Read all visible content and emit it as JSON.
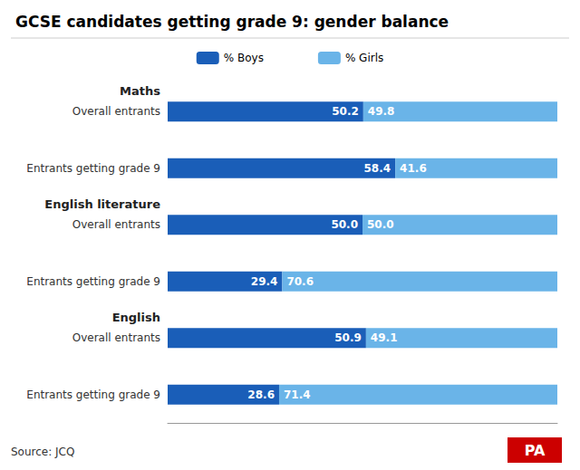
{
  "chart_data": {
    "type": "bar",
    "orientation": "horizontal",
    "stacked": true,
    "title": "GCSE candidates getting grade 9: gender balance",
    "categories": [
      "Overall entrants",
      "Entrants getting grade 9",
      "Overall entrants",
      "Entrants getting grade 9",
      "Overall entrants",
      "Entrants getting grade 9"
    ],
    "category_groups": [
      "Maths",
      "Maths",
      "English literature",
      "English literature",
      "English",
      "English"
    ],
    "series": [
      {
        "name": "% Boys",
        "color": "#1a5eb8",
        "values": [
          50.2,
          58.4,
          50.0,
          29.4,
          50.9,
          28.6
        ],
        "value_labels": [
          "50.2",
          "58.4",
          "50.0",
          "29.4",
          "50.9",
          "28.6"
        ]
      },
      {
        "name": "% Girls",
        "color": "#6ab4e8",
        "values": [
          49.8,
          41.6,
          50.0,
          70.6,
          49.1,
          71.4
        ],
        "value_labels": [
          "49.8",
          "41.6",
          "50.0",
          "70.6",
          "49.1",
          "71.4"
        ]
      }
    ],
    "xlim": [
      0,
      100
    ],
    "data_labels": true,
    "tick_labels": "y",
    "grid": false,
    "legend": "top",
    "annotations": [
      {
        "text": "Source: JCQ"
      },
      {
        "text": "PA",
        "color": "#cc0000"
      }
    ]
  }
}
